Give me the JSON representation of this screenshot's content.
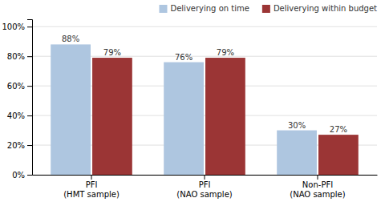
{
  "chart_data": {
    "type": "bar",
    "categories": [
      "PFI\n(HMT sample)",
      "PFI\n(NAO sample)",
      "Non-PFI\n(NAO sample)"
    ],
    "series": [
      {
        "name": "Deliverying on time",
        "color": "#aec6e0",
        "values": [
          88,
          76,
          30
        ],
        "value_labels": [
          "88%",
          "76%",
          "30%"
        ]
      },
      {
        "name": "Deliverying within budget",
        "color": "#9b3535",
        "values": [
          79,
          79,
          27
        ],
        "value_labels": [
          "79%",
          "79%",
          "27%"
        ]
      }
    ],
    "ylim": [
      0,
      105
    ],
    "yticks": [
      {
        "value": 0,
        "label": "0%"
      },
      {
        "value": 20,
        "label": "20%"
      },
      {
        "value": 40,
        "label": "40%"
      },
      {
        "value": 60,
        "label": "60%"
      },
      {
        "value": 80,
        "label": "80%"
      },
      {
        "value": 100,
        "label": "100%"
      }
    ],
    "grid": true,
    "legend": "upper right",
    "data_labels": true
  }
}
